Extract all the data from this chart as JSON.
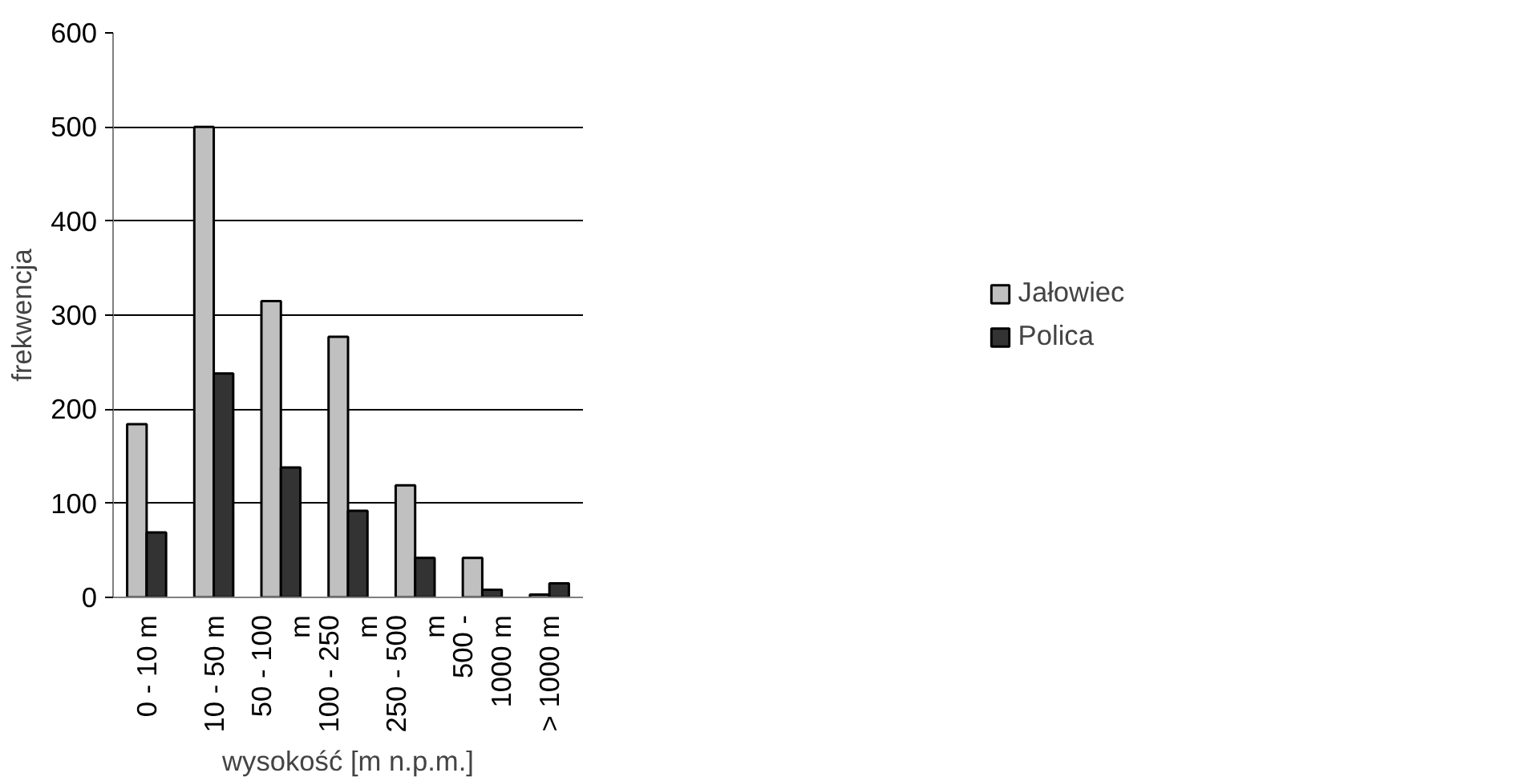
{
  "chart_data": {
    "type": "bar",
    "xlabel": "wysokość [m n.p.m.]",
    "ylabel": "frekwencja",
    "categories": [
      "0 - 10 m",
      "10 - 50 m",
      "50 - 100 m",
      "100 - 250 m",
      "250 - 500 m",
      "500 - 1000 m",
      "> 1000 m"
    ],
    "series": [
      {
        "name": "Jałowiec",
        "color": "#c0c0c0",
        "values": [
          184,
          500,
          315,
          277,
          119,
          42,
          3
        ]
      },
      {
        "name": "Polica",
        "color": "#333333",
        "values": [
          69,
          238,
          138,
          92,
          42,
          8,
          15
        ]
      }
    ],
    "ylim": [
      0,
      600
    ],
    "yticks": [
      0,
      100,
      200,
      300,
      400,
      500,
      600
    ],
    "grid": "y",
    "legend": "right"
  }
}
